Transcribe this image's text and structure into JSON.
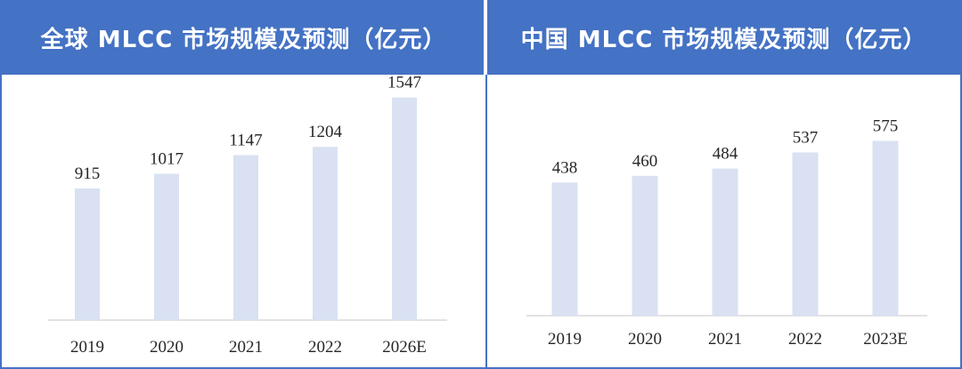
{
  "colors": {
    "header_bg": "#4472C4",
    "bar": "#D9E1F2",
    "axis": "#D9D9D9",
    "text": "#262626"
  },
  "chart_data": [
    {
      "type": "bar",
      "title": "全球 MLCC 市场规模及预测（亿元）",
      "categories": [
        "2019",
        "2020",
        "2021",
        "2022",
        "2026E"
      ],
      "values": [
        915,
        1017,
        1147,
        1204,
        1547
      ],
      "value_labels": [
        "915",
        "1017",
        "1147",
        "1204",
        "1547"
      ],
      "ylim": [
        0,
        1700
      ],
      "grid": false,
      "legend": "none"
    },
    {
      "type": "bar",
      "title": "中国 MLCC 市场规模及预测（亿元）",
      "categories": [
        "2019",
        "2020",
        "2021",
        "2022",
        "2023E"
      ],
      "values": [
        438,
        460,
        484,
        537,
        575
      ],
      "value_labels": [
        "438",
        "460",
        "484",
        "537",
        "575"
      ],
      "ylim": [
        0,
        640
      ],
      "grid": false,
      "legend": "none"
    }
  ]
}
